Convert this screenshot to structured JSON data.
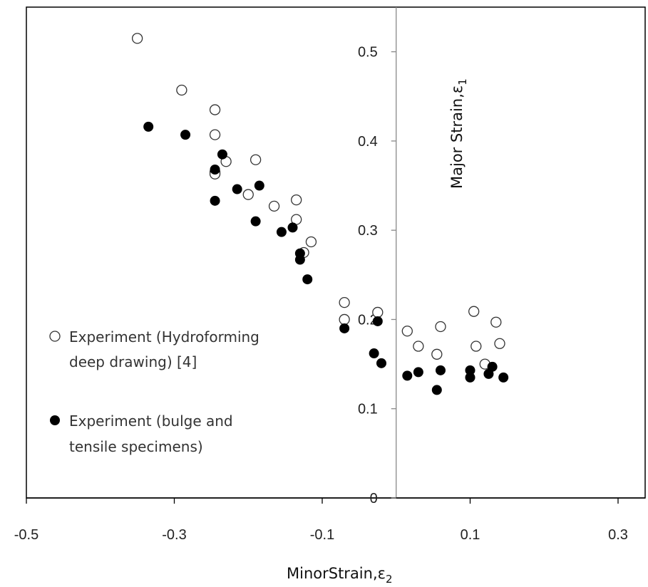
{
  "chart_data": {
    "type": "scatter",
    "xlabel_text": "MinorStrain,ε",
    "xlabel_sub": "2",
    "ylabel_text": "Major Strain,ε",
    "ylabel_sub": "1",
    "xlim": [
      -0.5,
      0.3
    ],
    "ylim": [
      0,
      0.55
    ],
    "x_ticks": [
      "-0.5",
      "-0.3",
      "-0.1",
      "0.1",
      "0.3"
    ],
    "x_tick_values": [
      -0.5,
      -0.3,
      -0.1,
      0.1,
      0.3
    ],
    "y_ticks": [
      "0",
      "0.1",
      "0.2",
      "0.3",
      "0.4",
      "0.5"
    ],
    "y_tick_values": [
      0,
      0.1,
      0.2,
      0.3,
      0.4,
      0.5
    ],
    "grid": false,
    "legend_position": "left",
    "series": [
      {
        "name": "Experiment (Hydroforming deep drawing) [4]",
        "legend_lines": [
          "Experiment (Hydroforming",
          "deep drawing) [4]"
        ],
        "marker": "open-circle",
        "x": [
          -0.35,
          -0.29,
          -0.245,
          -0.245,
          -0.245,
          -0.245,
          -0.23,
          -0.19,
          -0.2,
          -0.165,
          -0.135,
          -0.135,
          -0.125,
          -0.115,
          -0.07,
          -0.07,
          -0.025,
          0.015,
          0.03,
          0.055,
          0.06,
          0.105,
          0.108,
          0.135,
          0.14,
          0.12
        ],
        "y": [
          0.515,
          0.457,
          0.435,
          0.407,
          0.365,
          0.363,
          0.377,
          0.379,
          0.34,
          0.327,
          0.334,
          0.312,
          0.275,
          0.287,
          0.219,
          0.2,
          0.208,
          0.187,
          0.17,
          0.161,
          0.192,
          0.209,
          0.17,
          0.197,
          0.173,
          0.15
        ]
      },
      {
        "name": "Experiment (bulge and tensile specimens)",
        "legend_lines": [
          "Experiment (bulge and",
          "tensile specimens)"
        ],
        "marker": "filled-circle",
        "x": [
          -0.335,
          -0.285,
          -0.245,
          -0.245,
          -0.235,
          -0.215,
          -0.185,
          -0.19,
          -0.155,
          -0.14,
          -0.13,
          -0.13,
          -0.12,
          -0.07,
          -0.025,
          -0.03,
          -0.02,
          0.015,
          0.03,
          0.055,
          0.06,
          0.1,
          0.1,
          0.125,
          0.13,
          0.145
        ],
        "y": [
          0.416,
          0.407,
          0.368,
          0.333,
          0.385,
          0.346,
          0.35,
          0.31,
          0.298,
          0.303,
          0.274,
          0.267,
          0.245,
          0.19,
          0.198,
          0.162,
          0.151,
          0.137,
          0.141,
          0.121,
          0.143,
          0.143,
          0.135,
          0.139,
          0.147,
          0.135
        ]
      }
    ]
  }
}
